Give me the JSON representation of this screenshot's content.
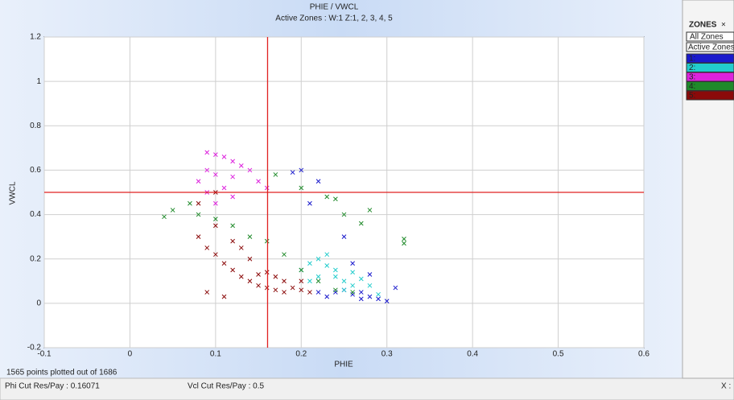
{
  "chart_data": {
    "type": "scatter",
    "title": "PHIE / VWCL",
    "subtitle": "Active Zones :  W:1 Z:1, 2, 3, 4, 5",
    "x_label": "PHIE",
    "y_label": "VWCL",
    "xlim": [
      -0.1,
      0.6
    ],
    "xticks": [
      -0.1,
      0,
      0.1,
      0.2,
      0.3,
      0.4,
      0.5,
      0.6
    ],
    "ylim": [
      -0.2,
      1.2
    ],
    "yticks": [
      -0.2,
      0,
      0.2,
      0.4,
      0.6,
      0.8,
      1,
      1.2
    ],
    "grid": true,
    "xcut": 0.16071,
    "ycut": 0.5,
    "cut_color": "#e02020",
    "series": [
      {
        "name": "1:",
        "color": "#1a1acc",
        "x": [
          0.27,
          0.28,
          0.29,
          0.3,
          0.26,
          0.25,
          0.24,
          0.23,
          0.22,
          0.27,
          0.31,
          0.2,
          0.19,
          0.26,
          0.21,
          0.25,
          0.28,
          0.22
        ],
        "values": [
          0.05,
          0.03,
          0.02,
          0.01,
          0.04,
          0.06,
          0.05,
          0.03,
          0.05,
          0.02,
          0.07,
          0.6,
          0.59,
          0.18,
          0.45,
          0.3,
          0.13,
          0.55
        ]
      },
      {
        "name": "2:",
        "color": "#22cccc",
        "x": [
          0.2,
          0.21,
          0.22,
          0.23,
          0.24,
          0.25,
          0.26,
          0.27,
          0.28,
          0.23,
          0.24,
          0.26,
          0.22,
          0.21,
          0.25,
          0.29
        ],
        "values": [
          0.15,
          0.18,
          0.2,
          0.17,
          0.12,
          0.1,
          0.14,
          0.11,
          0.08,
          0.22,
          0.15,
          0.08,
          0.12,
          0.1,
          0.06,
          0.04
        ]
      },
      {
        "name": "3:",
        "color": "#dd22dd",
        "x": [
          0.09,
          0.1,
          0.11,
          0.12,
          0.09,
          0.1,
          0.13,
          0.08,
          0.12,
          0.14,
          0.11,
          0.15,
          0.09,
          0.16,
          0.12,
          0.1
        ],
        "values": [
          0.68,
          0.67,
          0.66,
          0.64,
          0.6,
          0.58,
          0.62,
          0.55,
          0.57,
          0.6,
          0.52,
          0.55,
          0.5,
          0.52,
          0.48,
          0.45
        ]
      },
      {
        "name": "4:",
        "color": "#1f8a2a",
        "x": [
          0.04,
          0.05,
          0.07,
          0.08,
          0.1,
          0.12,
          0.14,
          0.16,
          0.18,
          0.2,
          0.22,
          0.24,
          0.2,
          0.23,
          0.25,
          0.27,
          0.24,
          0.32,
          0.32,
          0.28,
          0.17,
          0.26
        ],
        "values": [
          0.39,
          0.42,
          0.45,
          0.4,
          0.38,
          0.35,
          0.3,
          0.28,
          0.22,
          0.15,
          0.1,
          0.06,
          0.52,
          0.48,
          0.4,
          0.36,
          0.47,
          0.27,
          0.29,
          0.42,
          0.58,
          0.05
        ]
      },
      {
        "name": "5:",
        "color": "#8b0a0a",
        "x": [
          0.08,
          0.09,
          0.1,
          0.11,
          0.12,
          0.13,
          0.14,
          0.15,
          0.16,
          0.17,
          0.18,
          0.19,
          0.2,
          0.21,
          0.1,
          0.12,
          0.14,
          0.16,
          0.18,
          0.09,
          0.11,
          0.15,
          0.17,
          0.13,
          0.2,
          0.08,
          0.1
        ],
        "values": [
          0.3,
          0.25,
          0.22,
          0.18,
          0.15,
          0.12,
          0.1,
          0.08,
          0.07,
          0.06,
          0.05,
          0.07,
          0.06,
          0.05,
          0.35,
          0.28,
          0.2,
          0.14,
          0.1,
          0.05,
          0.03,
          0.13,
          0.12,
          0.25,
          0.1,
          0.45,
          0.5
        ]
      }
    ]
  },
  "footer": "1565 points plotted out of 1686",
  "status_bar": {
    "phi_cut": "Phi Cut Res/Pay : 0.16071",
    "vcl_cut": "Vcl Cut Res/Pay : 0.5",
    "x_readout": "X :"
  },
  "zones_panel": {
    "title": "ZONES",
    "close": "×",
    "all_zones": "All Zones",
    "active_zones": "Active Zones"
  }
}
